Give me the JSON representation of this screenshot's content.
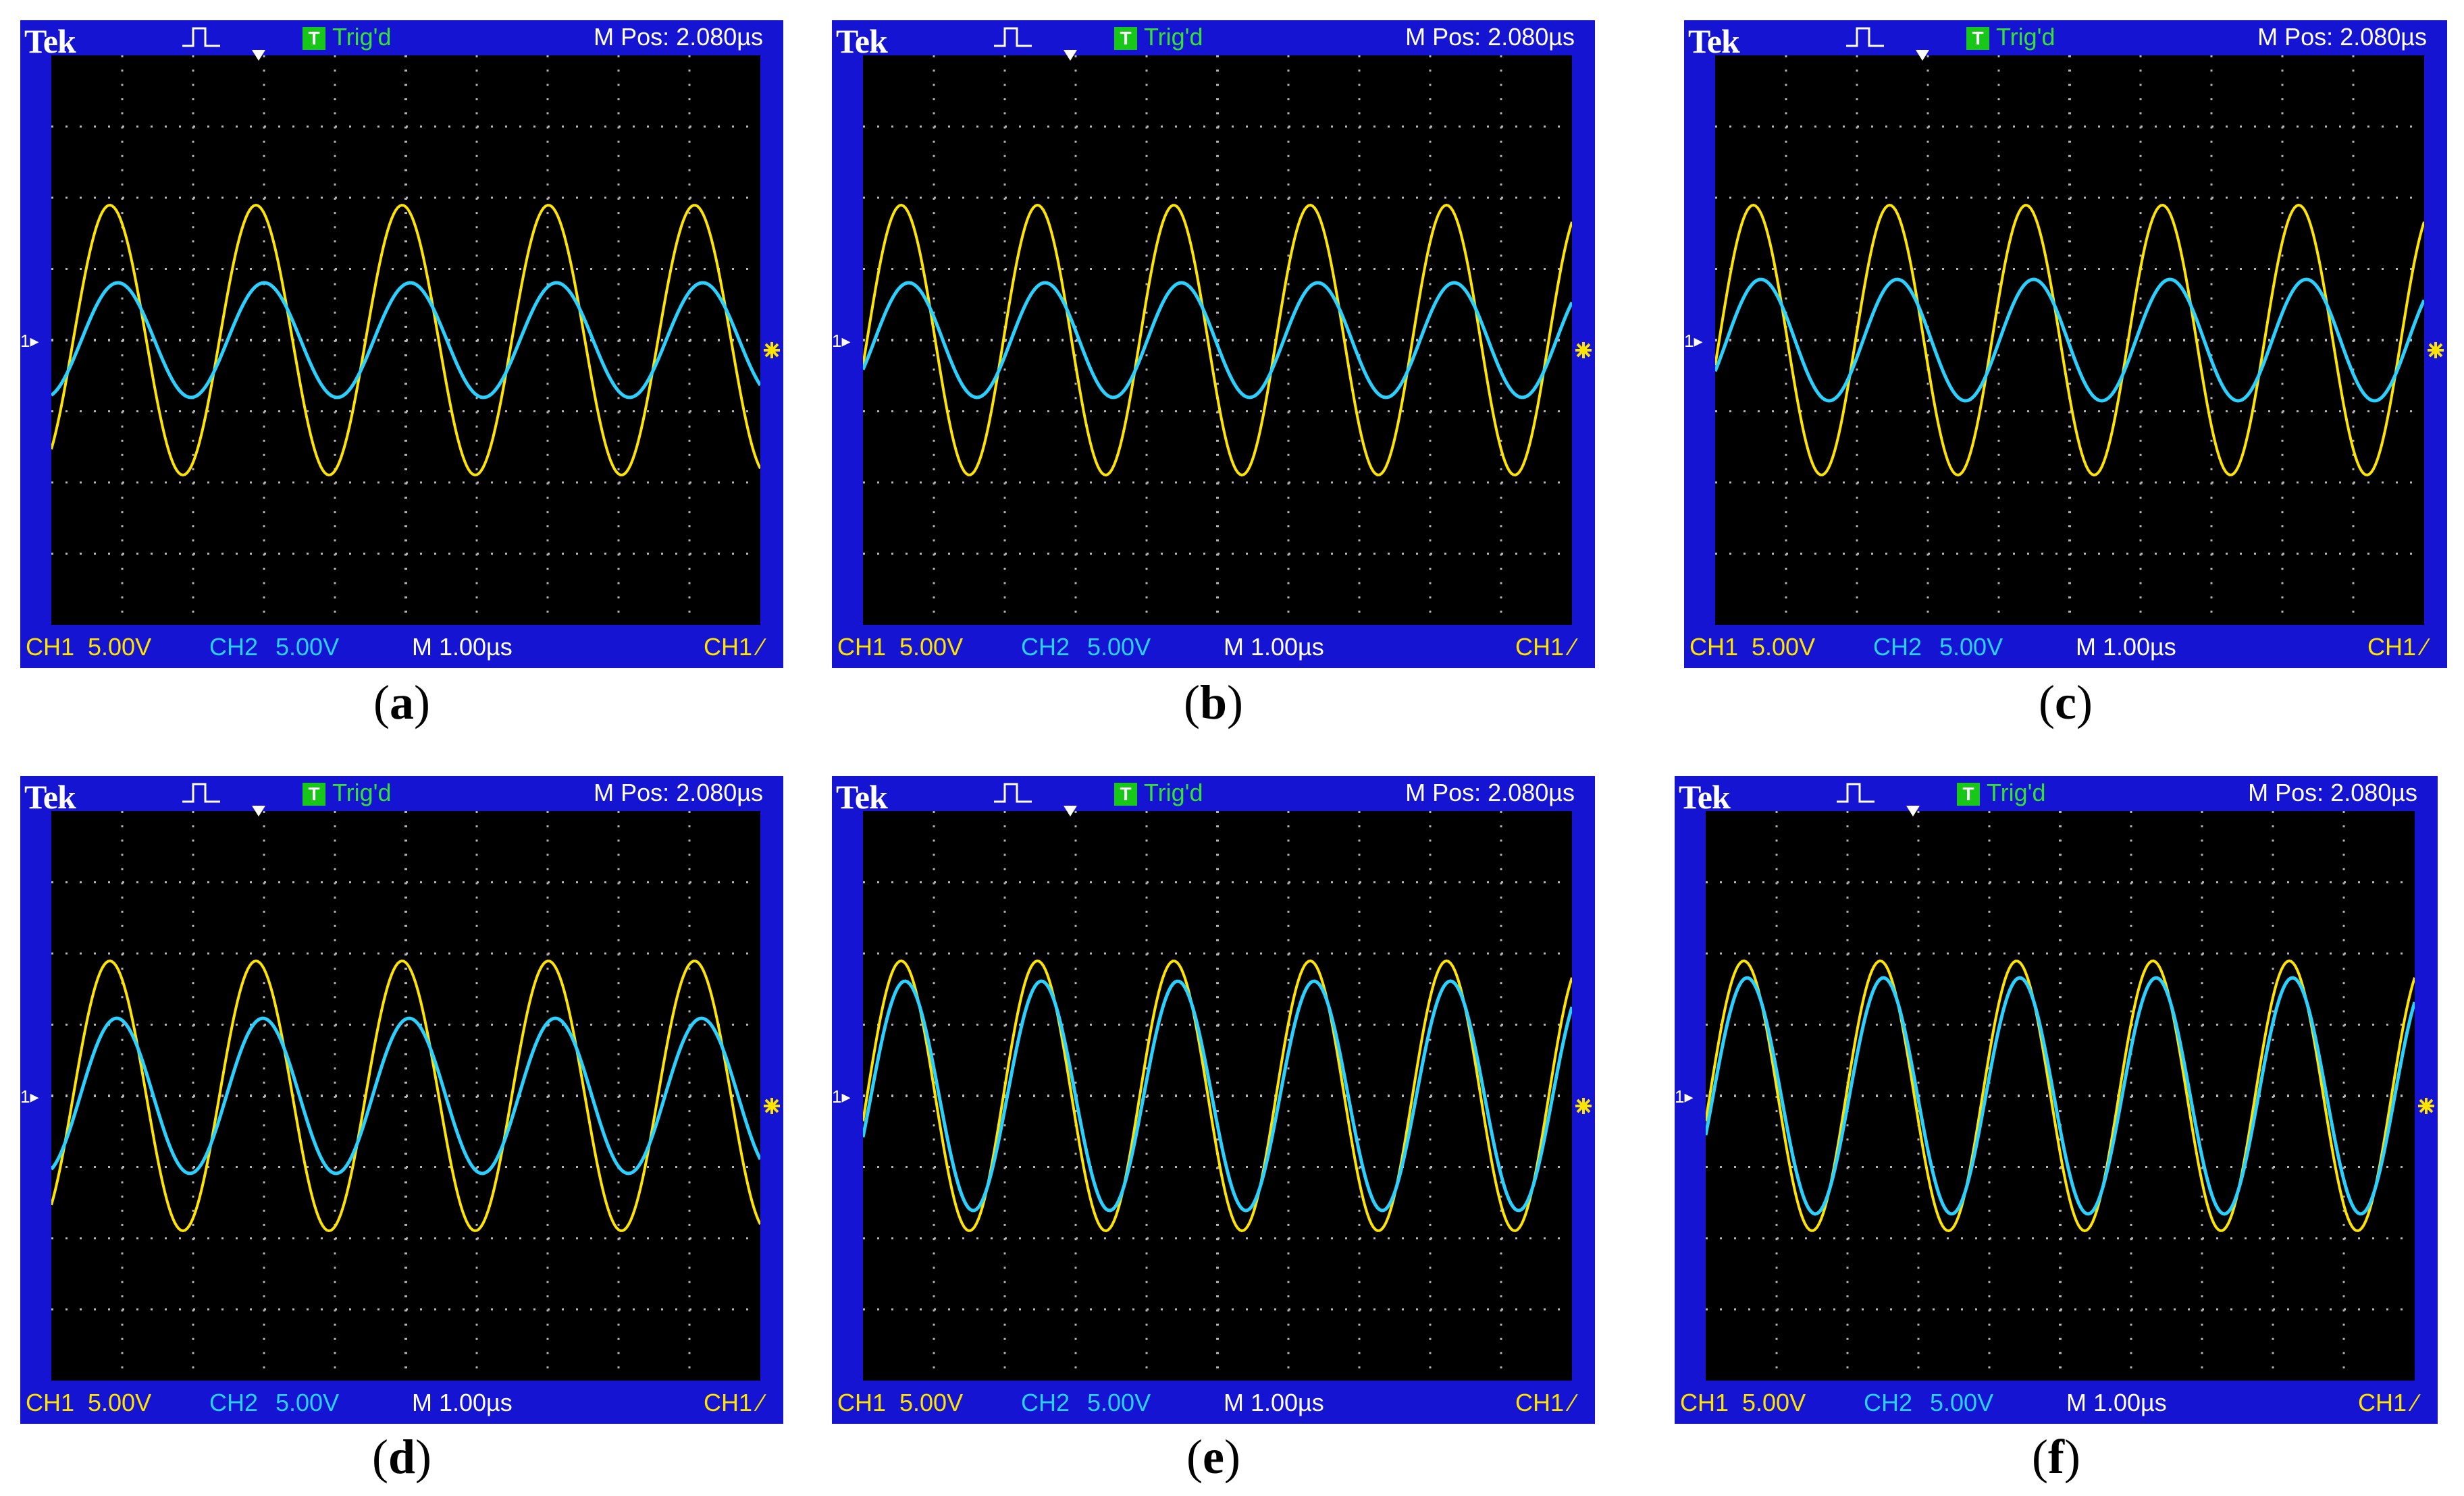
{
  "colors": {
    "frame": "#1414d2",
    "screen": "#000000",
    "ch1_trace": "#ffe400",
    "ch2_trace": "#2ad0ff",
    "trig_badge": "#18c818"
  },
  "icons": [
    "acquire-pulse-icon",
    "trigger-position-arrow-icon",
    "ground-level-marker-icon",
    "trigger-level-marker-icon",
    "trigger-edge-icon"
  ],
  "panels": [
    {
      "brand": "Tek",
      "trig_badge": "T",
      "trig_status": "Trig'd",
      "mpos": "M Pos: 2.080µs",
      "ch1_label": "CH1",
      "ch1_scale": "5.00V",
      "ch2_label": "CH2",
      "ch2_scale": "5.00V",
      "timebase": "M 1.00µs",
      "trig_source": "CH1 ∕",
      "caption_open": "(",
      "caption_letter": "a",
      "caption_close": ")"
    },
    {
      "brand": "Tek",
      "trig_badge": "T",
      "trig_status": "Trig'd",
      "mpos": "M Pos: 2.080µs",
      "ch1_label": "CH1",
      "ch1_scale": "5.00V",
      "ch2_label": "CH2",
      "ch2_scale": "5.00V",
      "timebase": "M 1.00µs",
      "trig_source": "CH1 ∕",
      "caption_open": "(",
      "caption_letter": "b",
      "caption_close": ")"
    },
    {
      "brand": "Tek",
      "trig_badge": "T",
      "trig_status": "Trig'd",
      "mpos": "M Pos: 2.080µs",
      "ch1_label": "CH1",
      "ch1_scale": "5.00V",
      "ch2_label": "CH2",
      "ch2_scale": "5.00V",
      "timebase": "M 1.00µs",
      "trig_source": "CH1 ∕",
      "caption_open": "(",
      "caption_letter": "c",
      "caption_close": ")"
    },
    {
      "brand": "Tek",
      "trig_badge": "T",
      "trig_status": "Trig'd",
      "mpos": "M Pos: 2.080µs",
      "ch1_label": "CH1",
      "ch1_scale": "5.00V",
      "ch2_label": "CH2",
      "ch2_scale": "5.00V",
      "timebase": "M 1.00µs",
      "trig_source": "CH1 ∕",
      "caption_open": "(",
      "caption_letter": "d",
      "caption_close": ")"
    },
    {
      "brand": "Tek",
      "trig_badge": "T",
      "trig_status": "Trig'd",
      "mpos": "M Pos: 2.080µs",
      "ch1_label": "CH1",
      "ch1_scale": "5.00V",
      "ch2_label": "CH2",
      "ch2_scale": "5.00V",
      "timebase": "M 1.00µs",
      "trig_source": "CH1 ∕",
      "caption_open": "(",
      "caption_letter": "e",
      "caption_close": ")"
    },
    {
      "brand": "Tek",
      "trig_badge": "T",
      "trig_status": "Trig'd",
      "mpos": "M Pos: 2.080µs",
      "ch1_label": "CH1",
      "ch1_scale": "5.00V",
      "ch2_label": "CH2",
      "ch2_scale": "5.00V",
      "timebase": "M 1.00µs",
      "trig_source": "CH1 ∕",
      "caption_open": "(",
      "caption_letter": "f",
      "caption_close": ")"
    }
  ]
}
